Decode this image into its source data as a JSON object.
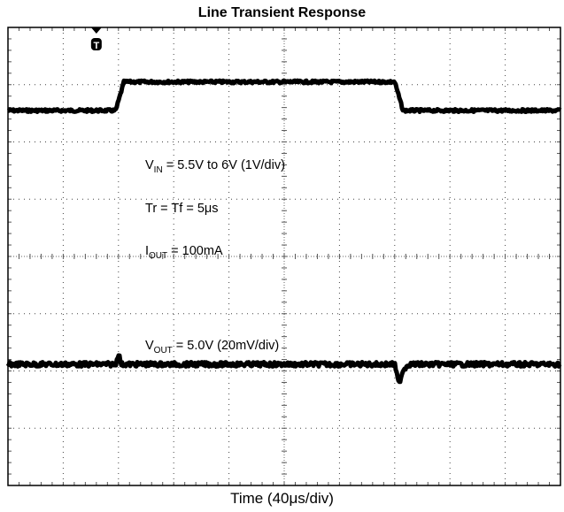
{
  "chart_data": {
    "type": "line",
    "title": "Line Transient Response",
    "xlabel": "Time (40μs/div)",
    "ylabel": "",
    "grid": true,
    "divisions": {
      "x": 10,
      "y": 8
    },
    "x_unit": "μs",
    "xlim": [
      0,
      400
    ],
    "trigger_marker": "T",
    "trigger_x": 64,
    "annotations": [
      {
        "main": "V",
        "sub": "IN",
        "rest": " = 5.5V to 6V (1V/div)"
      },
      {
        "main": "Tr = Tf = 5μs",
        "sub": "",
        "rest": ""
      },
      {
        "main": "I",
        "sub": "OUT",
        "rest": " = 100mA"
      },
      {
        "main": "V",
        "sub": "OUT",
        "rest": " = 5.0V (20mV/div)"
      }
    ],
    "series": [
      {
        "name": "Vᵢₙ",
        "units": "V",
        "x": [
          0,
          78,
          84,
          280,
          286,
          400
        ],
        "y": [
          5.5,
          5.5,
          6.0,
          6.0,
          5.5,
          5.5
        ]
      },
      {
        "name": "Vₒᵤₜ",
        "units": "mV deviation",
        "x": [
          0,
          78,
          80,
          82,
          86,
          280,
          283,
          286,
          290,
          400
        ],
        "y": [
          0,
          0,
          4,
          0,
          0,
          0,
          -7,
          -2,
          0,
          0
        ]
      }
    ]
  }
}
